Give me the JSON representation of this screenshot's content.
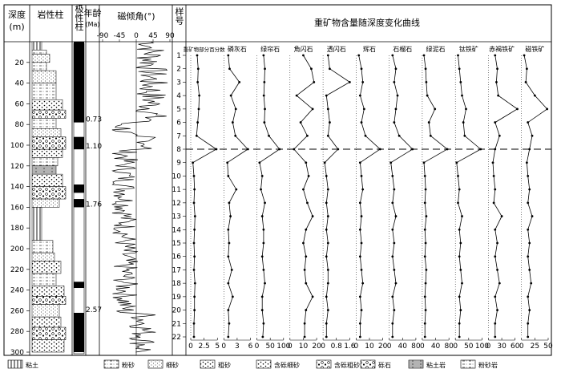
{
  "headers": {
    "depth": "深度",
    "depth_unit": "(m)",
    "lith": "岩性柱",
    "polarity": "极性柱",
    "age": "年龄",
    "age_unit": "(Ma)",
    "mag": "磁倾角(°)",
    "sample": "样号",
    "curves": "重矿物含量随深度变化曲线"
  },
  "depth_ticks": [
    "20",
    "40",
    "60",
    "80",
    "100",
    "120",
    "140",
    "160",
    "180",
    "200",
    "220",
    "240",
    "260",
    "280",
    "300"
  ],
  "ages": [
    "0.73",
    "1.10",
    "1.76",
    "2.57"
  ],
  "mag_ticks": [
    "-90",
    "-45",
    "0",
    "45",
    "90"
  ],
  "sample_ticks": [
    "1",
    "2",
    "3",
    "4",
    "5",
    "6",
    "7",
    "8",
    "9",
    "10",
    "11",
    "12",
    "13",
    "14",
    "15",
    "16",
    "17",
    "18",
    "19",
    "20",
    "21",
    "22"
  ],
  "minerals": [
    {
      "name": "重矿物部分百分数",
      "ticks": [
        "0",
        "2.5",
        "5"
      ],
      "values": [
        1.2,
        1.4,
        1.3,
        1.6,
        1.5,
        1.3,
        1.1,
        4.8,
        0.4,
        0.6,
        0.7,
        0.6,
        0.8,
        0.7,
        0.6,
        0.7,
        0.6,
        0.8,
        0.7,
        0.7,
        0.6,
        0.6
      ]
    },
    {
      "name": "磷灰石",
      "ticks": [
        "0",
        "3",
        "6"
      ],
      "values": [
        1.0,
        1.3,
        3.5,
        1.6,
        2.7,
        2.0,
        2.6,
        5.4,
        0.8,
        1.0,
        2.8,
        1.2,
        1.5,
        1.0,
        1.2,
        1.0,
        1.8,
        1.0,
        2.0,
        1.0,
        1.2,
        1.0
      ]
    },
    {
      "name": "绿帘石",
      "ticks": [
        "0",
        "50",
        "100"
      ],
      "values": [
        25,
        30,
        28,
        26,
        30,
        28,
        45,
        85,
        10,
        20,
        15,
        30,
        20,
        25,
        25,
        20,
        25,
        30,
        20,
        20,
        25,
        22
      ]
    },
    {
      "name": "角闪石",
      "ticks": [
        "0",
        "10",
        "20"
      ],
      "values": [
        10,
        16,
        18,
        5,
        17,
        8,
        13,
        3,
        12,
        14,
        10,
        13,
        17,
        12,
        10,
        12,
        11,
        12,
        17,
        12,
        11,
        11
      ]
    },
    {
      "name": "透闪石",
      "ticks": [
        "0",
        "0.8",
        "1.6"
      ],
      "values": [
        0.3,
        0.4,
        1.6,
        0.2,
        0.3,
        0.4,
        0.3,
        0.9,
        0.1,
        0.2,
        0.3,
        0.2,
        0.3,
        0.2,
        0.3,
        0.2,
        0.3,
        0.3,
        0.2,
        0.3,
        0.2,
        0.2
      ]
    },
    {
      "name": "辉石",
      "ticks": [
        "0",
        "10",
        "20"
      ],
      "values": [
        2,
        4,
        5,
        3,
        6,
        4,
        7,
        18,
        3,
        4,
        5,
        3,
        4,
        3,
        4,
        3,
        4,
        5,
        3,
        4,
        3,
        3
      ]
    },
    {
      "name": "石榴石",
      "ticks": [
        "0",
        "40",
        "80"
      ],
      "values": [
        10,
        20,
        15,
        25,
        20,
        15,
        30,
        70,
        5,
        10,
        15,
        10,
        20,
        10,
        15,
        10,
        15,
        20,
        10,
        15,
        10,
        10
      ]
    },
    {
      "name": "绿泥石",
      "ticks": [
        "0",
        "40",
        "80"
      ],
      "values": [
        5,
        10,
        12,
        15,
        38,
        20,
        25,
        75,
        5,
        8,
        10,
        8,
        12,
        8,
        10,
        8,
        12,
        10,
        8,
        10,
        8,
        8
      ]
    },
    {
      "name": "钛铁矿",
      "ticks": [
        "0",
        "50",
        "100"
      ],
      "values": [
        10,
        15,
        20,
        25,
        40,
        30,
        35,
        95,
        5,
        10,
        15,
        10,
        25,
        15,
        20,
        15,
        20,
        25,
        15,
        20,
        15,
        15
      ]
    },
    {
      "name": "赤褐铁矿",
      "ticks": [
        "0",
        "30",
        "60"
      ],
      "values": [
        15,
        20,
        18,
        22,
        65,
        15,
        25,
        15,
        10,
        12,
        15,
        12,
        30,
        15,
        20,
        15,
        20,
        25,
        15,
        20,
        15,
        15
      ]
    },
    {
      "name": "磁铁矿",
      "ticks": [
        "0",
        "25",
        "50"
      ],
      "values": [
        5,
        10,
        8,
        25,
        48,
        12,
        20,
        15,
        10,
        12,
        15,
        12,
        20,
        12,
        15,
        12,
        15,
        18,
        12,
        15,
        12,
        12
      ]
    }
  ],
  "legend": [
    "粘土",
    "粉砂",
    "细砂",
    "粗砂",
    "含砾细砂",
    "含砾粗砂",
    "砾石",
    "粘土岩",
    "粉砂岩"
  ],
  "colors": {
    "ink": "#000000",
    "paper": "#ffffff"
  }
}
